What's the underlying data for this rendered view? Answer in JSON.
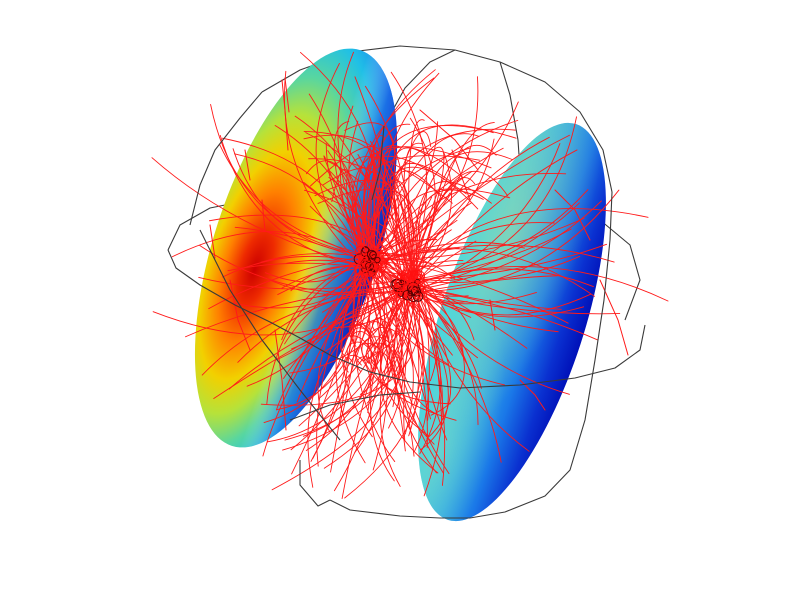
{
  "scene": {
    "background": "#ffffff",
    "wireframe_color": "#3a3a3a",
    "streamline_color": "#ff1a1a",
    "colormap": "jet",
    "objects": [
      "wireframe-sphere",
      "left-slice-disc",
      "right-slice-disc",
      "magnetic-field-streamlines"
    ]
  }
}
